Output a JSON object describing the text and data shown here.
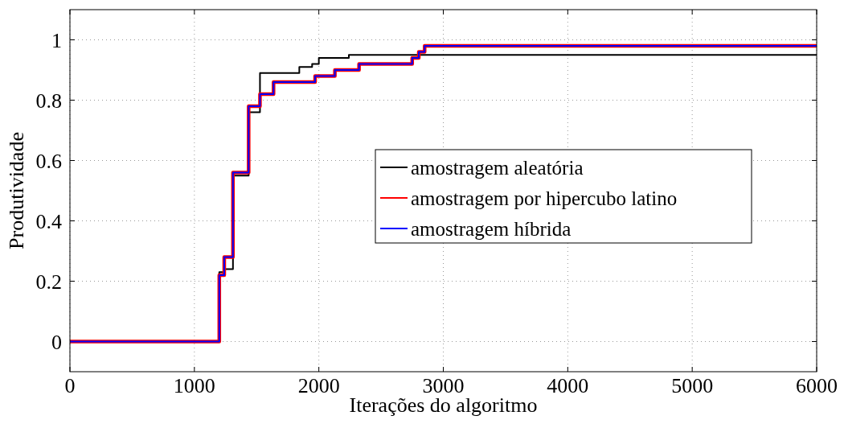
{
  "chart_data": {
    "type": "step",
    "xlabel": "Iterações do algoritmo",
    "ylabel": "Produtividade",
    "xlim": [
      0,
      6000
    ],
    "ylim": [
      -0.1,
      1.1
    ],
    "xticks": [
      0,
      1000,
      2000,
      3000,
      4000,
      5000,
      6000
    ],
    "yticks": [
      0,
      0.2,
      0.4,
      0.6,
      0.8,
      1
    ],
    "grid": true,
    "legend": "right",
    "line_style": "solid",
    "marker": "none",
    "series": [
      {
        "name": "amostragem aleatória",
        "color": "#000000",
        "x": [
          0,
          1200,
          1240,
          1310,
          1436,
          1527,
          1843,
          1946,
          2000,
          2241,
          6000
        ],
        "values": [
          0,
          0.23,
          0.24,
          0.55,
          0.76,
          0.89,
          0.91,
          0.92,
          0.94,
          0.95,
          0.95
        ]
      },
      {
        "name": "amostragem por hipercubo latino",
        "color": "#ff0000",
        "x": [
          0,
          1200,
          1240,
          1310,
          1436,
          1527,
          1636,
          1970,
          2129,
          2323,
          2750,
          2803,
          2850,
          6000
        ],
        "values": [
          0,
          0.22,
          0.28,
          0.56,
          0.78,
          0.82,
          0.86,
          0.88,
          0.9,
          0.92,
          0.94,
          0.96,
          0.98,
          0.98
        ]
      },
      {
        "name": "amostragem híbrida",
        "color": "#0000ff",
        "x": [
          0,
          1200,
          1240,
          1310,
          1436,
          1527,
          1636,
          1970,
          2129,
          2323,
          2750,
          2803,
          2850,
          6000
        ],
        "values": [
          0,
          0.22,
          0.28,
          0.56,
          0.78,
          0.82,
          0.86,
          0.88,
          0.9,
          0.92,
          0.94,
          0.96,
          0.98,
          0.98
        ]
      }
    ]
  }
}
